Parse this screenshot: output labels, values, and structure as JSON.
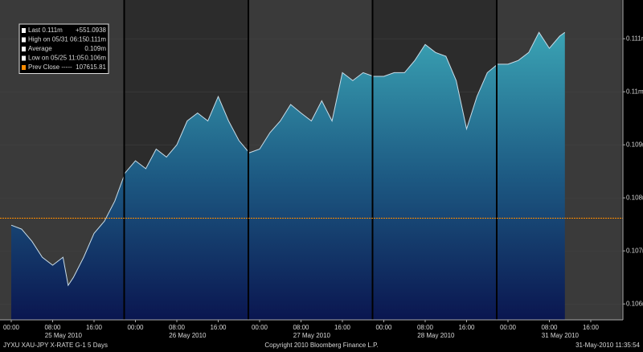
{
  "chart_data": {
    "type": "area",
    "days": [
      "25 May 2010",
      "26 May 2010",
      "27 May 2010",
      "28 May 2010",
      "31 May 2010"
    ],
    "xticks": [
      "00:00",
      "08:00",
      "16:00"
    ],
    "x": [
      "25 May 2010 00:00",
      "25 May 2010 02:00",
      "25 May 2010 04:00",
      "25 May 2010 06:00",
      "25 May 2010 08:00",
      "25 May 2010 10:00",
      "25 May 2010 11:00",
      "25 May 2010 12:00",
      "25 May 2010 14:00",
      "25 May 2010 16:00",
      "25 May 2010 18:00",
      "25 May 2010 20:00",
      "25 May 2010 22:00",
      "26 May 2010 00:00",
      "26 May 2010 02:00",
      "26 May 2010 04:00",
      "26 May 2010 06:00",
      "26 May 2010 08:00",
      "26 May 2010 10:00",
      "26 May 2010 12:00",
      "26 May 2010 14:00",
      "26 May 2010 16:00",
      "26 May 2010 18:00",
      "26 May 2010 20:00",
      "26 May 2010 22:00",
      "27 May 2010 00:00",
      "27 May 2010 02:00",
      "27 May 2010 04:00",
      "27 May 2010 06:00",
      "27 May 2010 08:00",
      "27 May 2010 10:00",
      "27 May 2010 12:00",
      "27 May 2010 14:00",
      "27 May 2010 16:00",
      "27 May 2010 18:00",
      "27 May 2010 20:00",
      "27 May 2010 22:00",
      "28 May 2010 00:00",
      "28 May 2010 02:00",
      "28 May 2010 04:00",
      "28 May 2010 06:00",
      "28 May 2010 08:00",
      "28 May 2010 10:00",
      "28 May 2010 12:00",
      "28 May 2010 14:00",
      "28 May 2010 16:00",
      "28 May 2010 18:00",
      "28 May 2010 20:00",
      "28 May 2010 22:00",
      "31 May 2010 00:00",
      "31 May 2010 02:00",
      "31 May 2010 04:00",
      "31 May 2010 06:00",
      "31 May 2010 08:00",
      "31 May 2010 10:00",
      "31 May 2010 11:00"
    ],
    "series": [
      {
        "color": "#c8dce8",
        "values": [
          107485,
          107410,
          107180,
          106880,
          106730,
          106880,
          106350,
          106500,
          106880,
          107330,
          107560,
          107940,
          108470,
          108700,
          108550,
          108920,
          108770,
          109000,
          109450,
          109600,
          109450,
          109910,
          109450,
          109080,
          108850,
          108920,
          109230,
          109450,
          109760,
          109600,
          109450,
          109830,
          109450,
          110360,
          110210,
          110360,
          110290,
          110290,
          110360,
          110360,
          110590,
          110890,
          110740,
          110670,
          110210,
          109300,
          109910,
          110360,
          110520,
          110520,
          110590,
          110740,
          111120,
          110820,
          111050,
          111120
        ]
      }
    ],
    "ylim": [
      105700,
      111730
    ],
    "yticks": [
      {
        "value": 106000,
        "label": "0.106m"
      },
      {
        "value": 107000,
        "label": "0.107m"
      },
      {
        "value": 108000,
        "label": "0.108m"
      },
      {
        "value": 109000,
        "label": "0.109m"
      },
      {
        "value": 110000,
        "label": "0.11m"
      },
      {
        "value": 111000,
        "label": "0.111m"
      }
    ],
    "reference_line": {
      "value": 107615.81,
      "color": "#ff8c00"
    },
    "info_box": [
      {
        "label": "Last 0.111m",
        "value": "+551.0938"
      },
      {
        "label": "High on 05/31 06:15",
        "value": "0.111m"
      },
      {
        "label": "Average",
        "value": "0.109m"
      },
      {
        "label": "Low on 05/25 11:05",
        "value": "0.106m"
      },
      {
        "label": "Prev Close -----"
      }
    ],
    "footer": {
      "left": "JYXU  XAU-JPY X-RATE    G-1   5 Days",
      "center": "Copyright 2010 Bloomberg Finance L.P.",
      "right": "31-May-2010 11:35:54"
    }
  }
}
